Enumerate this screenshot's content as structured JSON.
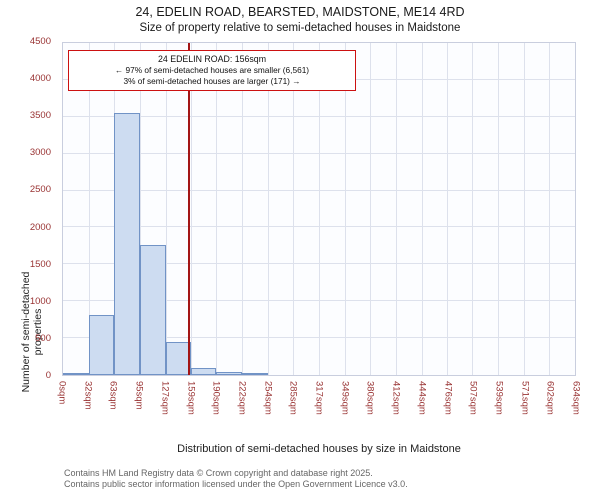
{
  "annotation": {
    "line1": "24 EDELIN ROAD: 156sqm",
    "line2": "← 97% of semi-detached houses are smaller (6,561)",
    "line3": "3% of semi-detached houses are larger (171) →"
  },
  "footer": {
    "line1": "Contains HM Land Registry data © Crown copyright and database right 2025.",
    "line2": "Contains public sector information licensed under the Open Government Licence v3.0."
  },
  "chart_data": {
    "type": "bar",
    "title": "24, EDELIN ROAD, BEARSTED, MAIDSTONE, ME14 4RD",
    "subtitle": "Size of property relative to semi-detached houses in Maidstone",
    "xlabel": "Distribution of semi-detached houses by size in Maidstone",
    "ylabel": "Number of semi-detached properties",
    "bin_edges_sqm": [
      0,
      32,
      63,
      95,
      127,
      159,
      190,
      222,
      254,
      285,
      317,
      349,
      380,
      412,
      444,
      476,
      507,
      539,
      571,
      602,
      634
    ],
    "categories": [
      "0sqm",
      "32sqm",
      "63sqm",
      "95sqm",
      "127sqm",
      "159sqm",
      "190sqm",
      "222sqm",
      "254sqm",
      "285sqm",
      "317sqm",
      "349sqm",
      "380sqm",
      "412sqm",
      "444sqm",
      "476sqm",
      "507sqm",
      "539sqm",
      "571sqm",
      "602sqm",
      "634sqm"
    ],
    "values": [
      10,
      820,
      3550,
      1760,
      450,
      90,
      45,
      20,
      0,
      0,
      0,
      0,
      0,
      0,
      0,
      0,
      0,
      0,
      0,
      0
    ],
    "marker_sqm": 156,
    "ylim": [
      0,
      4500
    ],
    "ytick_step": 500,
    "grid": true,
    "legend": false,
    "colors": {
      "bar_fill": "#cddcf1",
      "bar_edge": "#7193c6",
      "marker_line": "#a31515",
      "tick_label": "#993333",
      "grid_line": "#dde1ec",
      "annotation_border": "#cc1111"
    }
  }
}
